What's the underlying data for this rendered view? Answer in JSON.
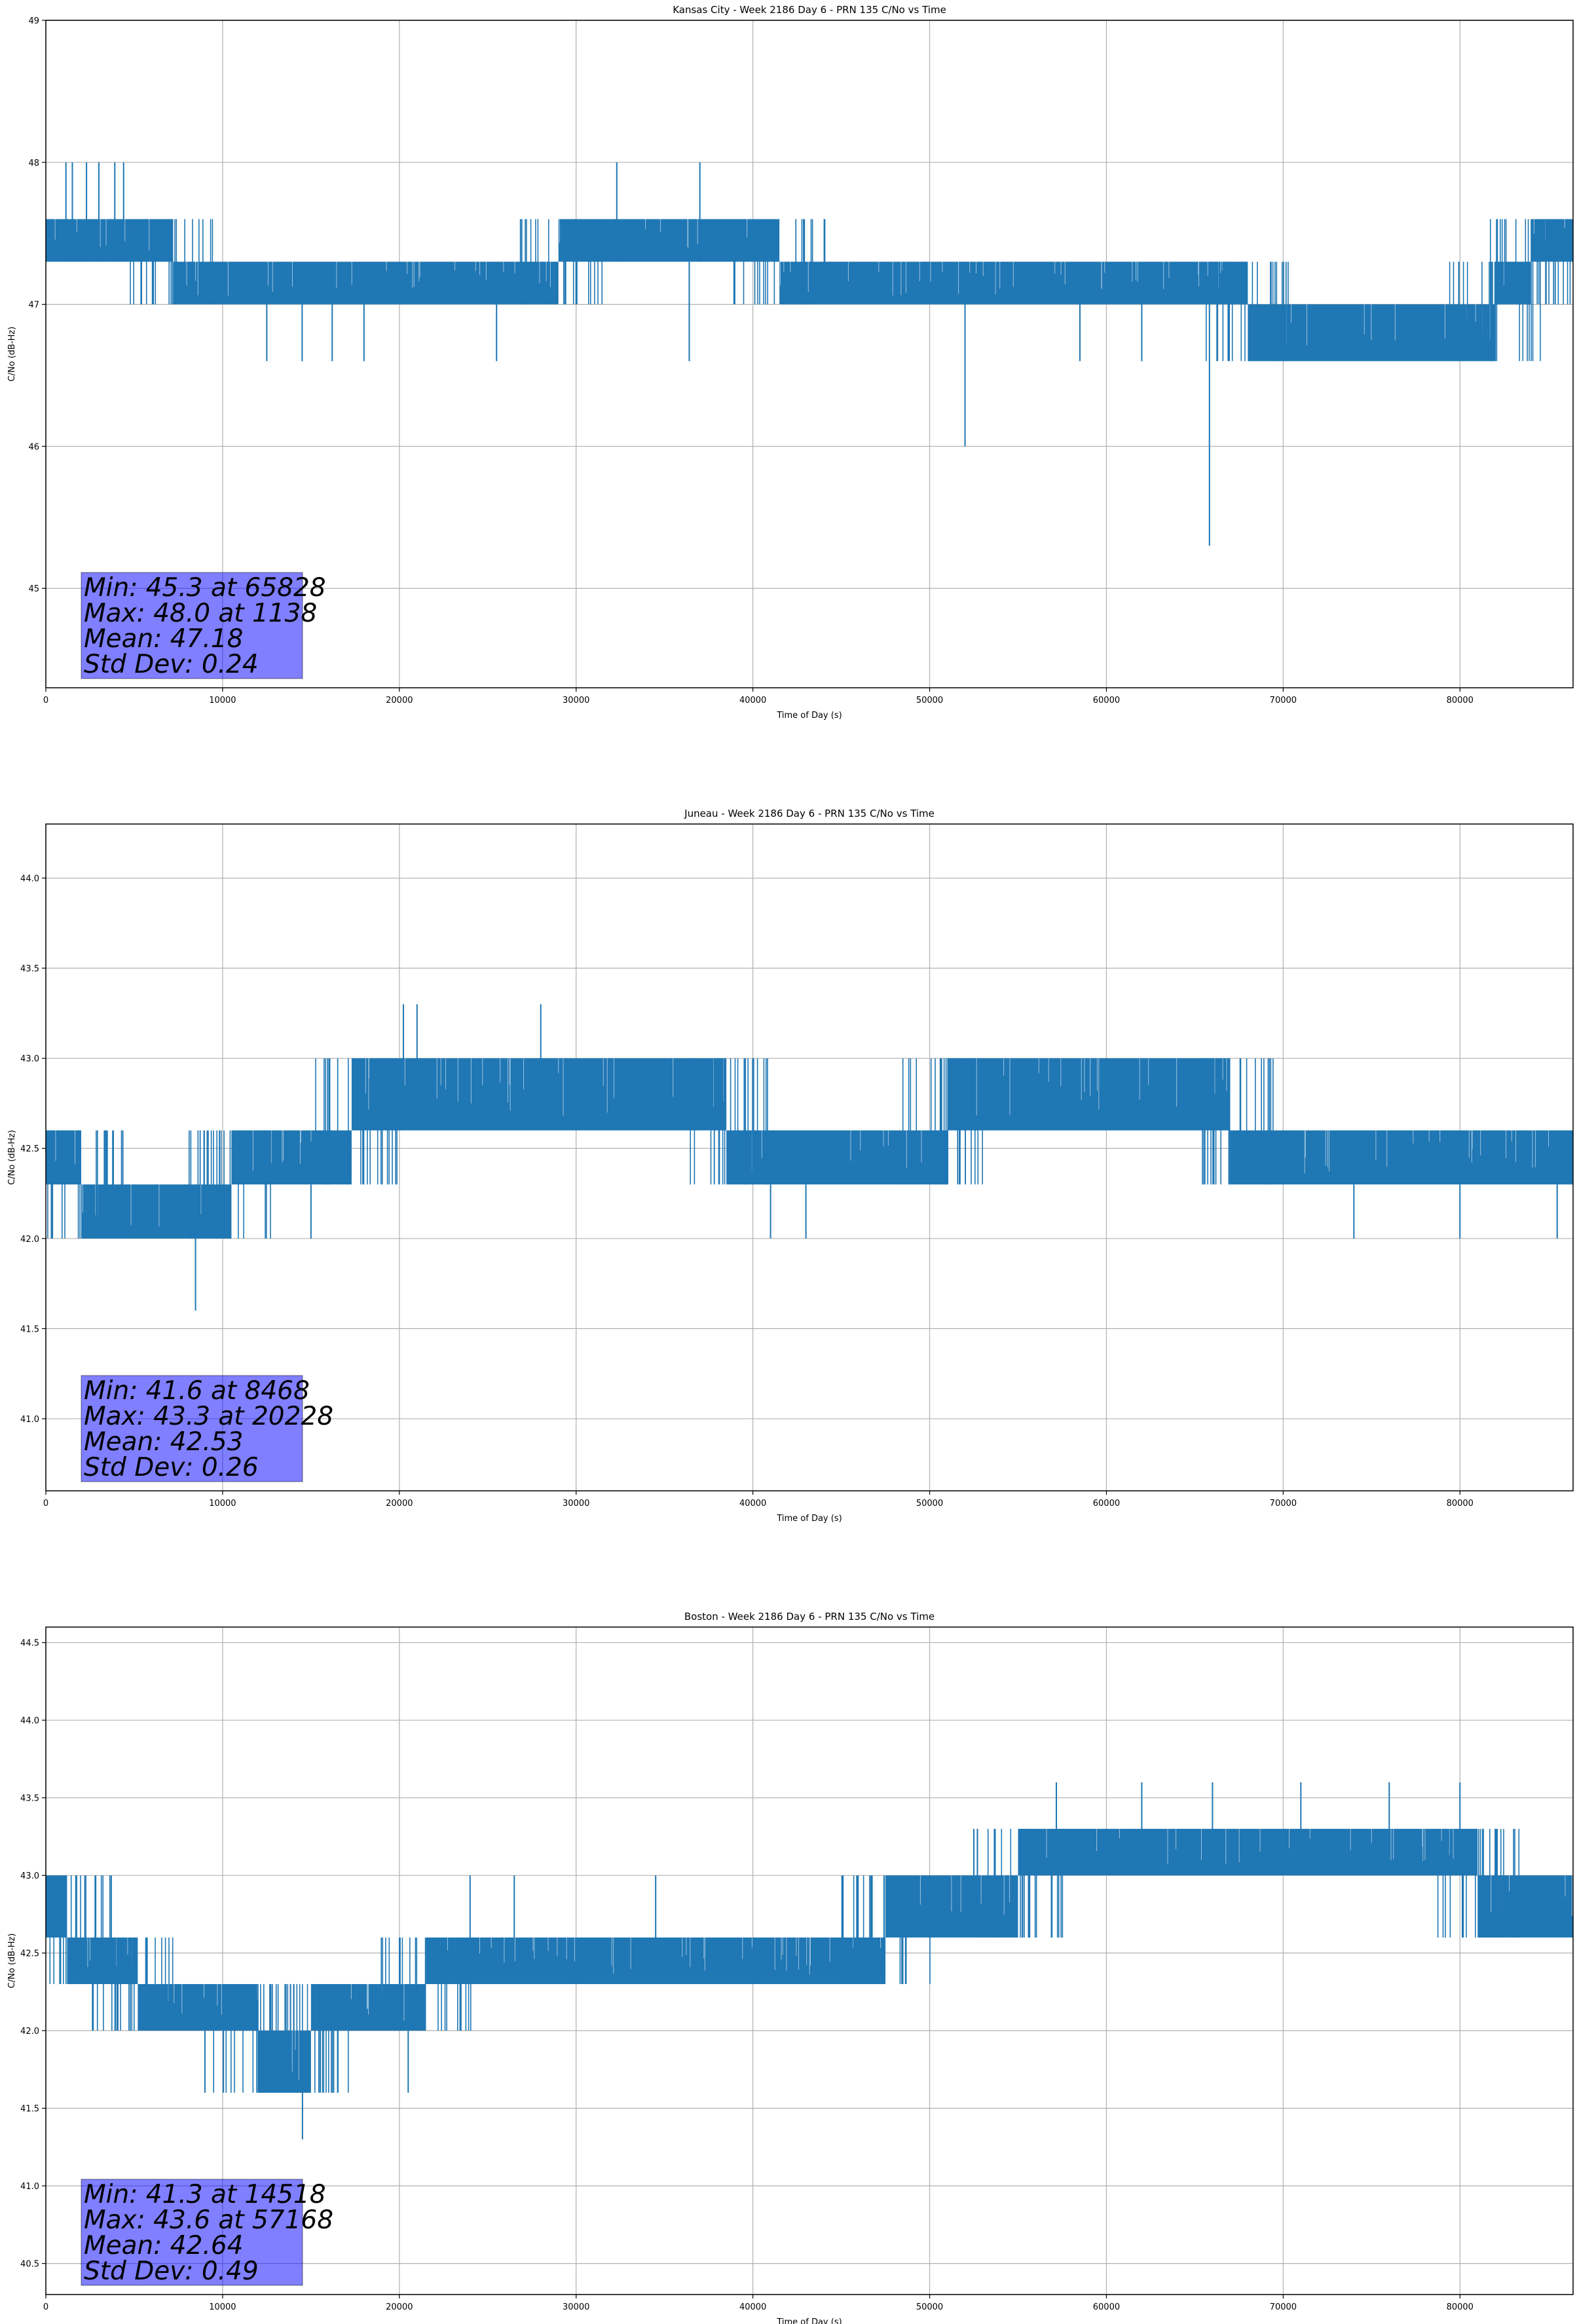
{
  "chart_data": [
    {
      "type": "line",
      "title": "Kansas City - Week 2186 Day 6 - PRN 135 C/No vs Time",
      "xlabel": "Time of Day (s)",
      "ylabel": "C/No (dB-Hz)",
      "xlim": [
        0,
        86400
      ],
      "ylim": [
        44.3,
        49.0
      ],
      "xticks": [
        0,
        10000,
        20000,
        30000,
        40000,
        50000,
        60000,
        70000,
        80000
      ],
      "yticks": [
        45,
        46,
        47,
        48,
        49
      ],
      "ytick_decimals": 0,
      "grid": true,
      "color": "#1f77b4",
      "segments": [
        {
          "x": [
            0,
            7200
          ],
          "lo": 47.3,
          "hi": 47.6
        },
        {
          "x": [
            7200,
            29000
          ],
          "lo": 47.0,
          "hi": 47.3
        },
        {
          "x": [
            29000,
            41500
          ],
          "lo": 47.3,
          "hi": 47.6
        },
        {
          "x": [
            41500,
            68000
          ],
          "lo": 47.0,
          "hi": 47.3
        },
        {
          "x": [
            68000,
            82000
          ],
          "lo": 46.6,
          "hi": 47.0
        },
        {
          "x": [
            82000,
            84000
          ],
          "lo": 47.0,
          "hi": 47.3
        },
        {
          "x": [
            84000,
            86400
          ],
          "lo": 47.3,
          "hi": 47.6
        }
      ],
      "spikes": [
        {
          "x": 1138,
          "lo": 47.3,
          "hi": 48.0
        },
        {
          "x": 1500,
          "lo": 47.3,
          "hi": 48.0
        },
        {
          "x": 2300,
          "lo": 47.3,
          "hi": 48.0
        },
        {
          "x": 3000,
          "lo": 47.3,
          "hi": 48.0
        },
        {
          "x": 3900,
          "lo": 47.3,
          "hi": 48.0
        },
        {
          "x": 4400,
          "lo": 47.3,
          "hi": 48.0
        },
        {
          "x": 12500,
          "lo": 46.6,
          "hi": 47.0
        },
        {
          "x": 14500,
          "lo": 46.6,
          "hi": 47.0
        },
        {
          "x": 16200,
          "lo": 46.6,
          "hi": 47.0
        },
        {
          "x": 18000,
          "lo": 46.6,
          "hi": 47.0
        },
        {
          "x": 25500,
          "lo": 46.6,
          "hi": 47.0
        },
        {
          "x": 32300,
          "lo": 47.3,
          "hi": 48.0
        },
        {
          "x": 36400,
          "lo": 46.6,
          "hi": 47.3
        },
        {
          "x": 37000,
          "lo": 47.3,
          "hi": 48.0
        },
        {
          "x": 52000,
          "lo": 46.0,
          "hi": 47.3
        },
        {
          "x": 58500,
          "lo": 46.6,
          "hi": 47.0
        },
        {
          "x": 62000,
          "lo": 46.6,
          "hi": 47.0
        },
        {
          "x": 65828,
          "lo": 45.3,
          "hi": 47.3
        }
      ],
      "stats": [
        "Min: 45.3 at 65828",
        "Max: 48.0 at 1138",
        "Mean: 47.18",
        "Std Dev: 0.24"
      ]
    },
    {
      "type": "line",
      "title": "Juneau - Week 2186 Day 6 - PRN 135 C/No vs Time",
      "xlabel": "Time of Day (s)",
      "ylabel": "C/No (dB-Hz)",
      "xlim": [
        0,
        86400
      ],
      "ylim": [
        40.6,
        44.3
      ],
      "xticks": [
        0,
        10000,
        20000,
        30000,
        40000,
        50000,
        60000,
        70000,
        80000
      ],
      "yticks": [
        41.0,
        41.5,
        42.0,
        42.5,
        43.0,
        43.5,
        44.0
      ],
      "ytick_decimals": 1,
      "grid": true,
      "color": "#1f77b4",
      "segments": [
        {
          "x": [
            0,
            2000
          ],
          "lo": 42.3,
          "hi": 42.6
        },
        {
          "x": [
            2000,
            10500
          ],
          "lo": 42.0,
          "hi": 42.3
        },
        {
          "x": [
            10500,
            17300
          ],
          "lo": 42.3,
          "hi": 42.6
        },
        {
          "x": [
            17300,
            38500
          ],
          "lo": 42.6,
          "hi": 43.0
        },
        {
          "x": [
            38500,
            51000
          ],
          "lo": 42.3,
          "hi": 42.6
        },
        {
          "x": [
            51000,
            67000
          ],
          "lo": 42.6,
          "hi": 43.0
        },
        {
          "x": [
            67000,
            86400
          ],
          "lo": 42.3,
          "hi": 42.6
        }
      ],
      "spikes": [
        {
          "x": 8468,
          "lo": 41.6,
          "hi": 42.3
        },
        {
          "x": 15000,
          "lo": 42.0,
          "hi": 42.3
        },
        {
          "x": 20228,
          "lo": 42.6,
          "hi": 43.3
        },
        {
          "x": 21000,
          "lo": 42.6,
          "hi": 43.3
        },
        {
          "x": 28000,
          "lo": 42.6,
          "hi": 43.3
        },
        {
          "x": 41000,
          "lo": 42.0,
          "hi": 42.3
        },
        {
          "x": 43000,
          "lo": 42.0,
          "hi": 42.3
        },
        {
          "x": 74000,
          "lo": 42.0,
          "hi": 42.3
        },
        {
          "x": 80000,
          "lo": 42.0,
          "hi": 42.3
        },
        {
          "x": 85500,
          "lo": 42.0,
          "hi": 42.3
        }
      ],
      "stats": [
        "Min: 41.6 at 8468",
        "Max: 43.3 at 20228",
        "Mean: 42.53",
        "Std Dev: 0.26"
      ]
    },
    {
      "type": "line",
      "title": "Boston - Week 2186 Day 6 - PRN 135 C/No vs Time",
      "xlabel": "Time of Day (s)",
      "ylabel": "C/No (dB-Hz)",
      "xlim": [
        0,
        86400
      ],
      "ylim": [
        40.3,
        44.6
      ],
      "xticks": [
        0,
        10000,
        20000,
        30000,
        40000,
        50000,
        60000,
        70000,
        80000
      ],
      "yticks": [
        40.5,
        41.0,
        41.5,
        42.0,
        42.5,
        43.0,
        43.5,
        44.0,
        44.5
      ],
      "ytick_decimals": 1,
      "grid": true,
      "color": "#1f77b4",
      "segments": [
        {
          "x": [
            0,
            1200
          ],
          "lo": 42.6,
          "hi": 43.0
        },
        {
          "x": [
            1200,
            5200
          ],
          "lo": 42.3,
          "hi": 42.6
        },
        {
          "x": [
            5200,
            12000
          ],
          "lo": 42.0,
          "hi": 42.3
        },
        {
          "x": [
            12000,
            15000
          ],
          "lo": 41.6,
          "hi": 42.0
        },
        {
          "x": [
            15000,
            21500
          ],
          "lo": 42.0,
          "hi": 42.3
        },
        {
          "x": [
            21500,
            47500
          ],
          "lo": 42.3,
          "hi": 42.6
        },
        {
          "x": [
            47500,
            55000
          ],
          "lo": 42.6,
          "hi": 43.0
        },
        {
          "x": [
            55000,
            81000
          ],
          "lo": 43.0,
          "hi": 43.3
        },
        {
          "x": [
            81000,
            86400
          ],
          "lo": 42.6,
          "hi": 43.0
        }
      ],
      "spikes": [
        {
          "x": 500,
          "lo": 42.6,
          "hi": 43.0
        },
        {
          "x": 3700,
          "lo": 42.6,
          "hi": 43.0
        },
        {
          "x": 9000,
          "lo": 41.6,
          "hi": 42.0
        },
        {
          "x": 14518,
          "lo": 41.3,
          "hi": 42.0
        },
        {
          "x": 20500,
          "lo": 41.6,
          "hi": 42.0
        },
        {
          "x": 24000,
          "lo": 42.6,
          "hi": 43.0
        },
        {
          "x": 26500,
          "lo": 42.6,
          "hi": 43.0
        },
        {
          "x": 34500,
          "lo": 42.6,
          "hi": 43.0
        },
        {
          "x": 52500,
          "lo": 43.0,
          "hi": 43.3
        },
        {
          "x": 57168,
          "lo": 43.3,
          "hi": 43.6
        },
        {
          "x": 62000,
          "lo": 43.3,
          "hi": 43.6
        },
        {
          "x": 66000,
          "lo": 43.3,
          "hi": 43.6
        },
        {
          "x": 71000,
          "lo": 43.3,
          "hi": 43.6
        },
        {
          "x": 76000,
          "lo": 43.3,
          "hi": 43.6
        },
        {
          "x": 80000,
          "lo": 43.3,
          "hi": 43.6
        }
      ],
      "stats": [
        "Min: 41.3 at 14518",
        "Max: 43.6 at 57168",
        "Mean: 42.64",
        "Std Dev: 0.49"
      ]
    }
  ]
}
